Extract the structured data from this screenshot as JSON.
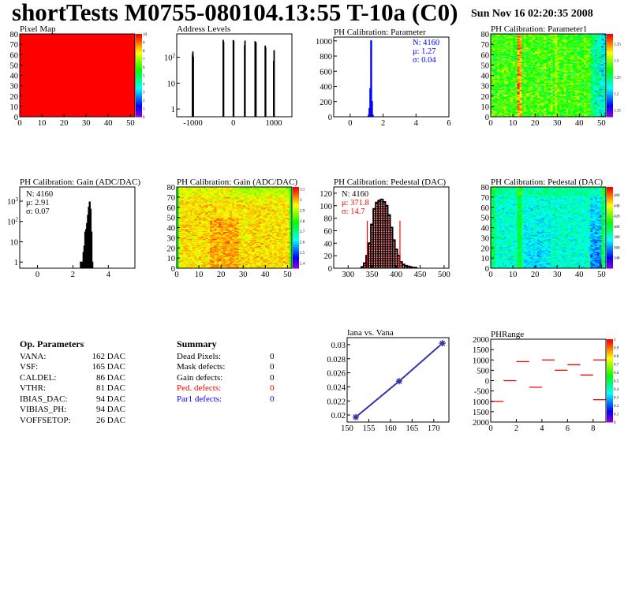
{
  "header": {
    "title": "shortTests M0755-080104.13:55 T-10a (C0)",
    "date": "Sun Nov 16 02:20:35 2008"
  },
  "colors": {
    "red": "#ff0000",
    "blue": "#0000ff",
    "graph": "#3333aa"
  },
  "op_parameters": {
    "title": "Op. Parameters",
    "rows": [
      {
        "name": "VANA:",
        "value": "162 DAC"
      },
      {
        "name": "VSF:",
        "value": "165 DAC"
      },
      {
        "name": "CALDEL:",
        "value": "86 DAC"
      },
      {
        "name": "VTHR:",
        "value": "81 DAC"
      },
      {
        "name": "IBIAS_DAC:",
        "value": "94 DAC"
      },
      {
        "name": "VIBIAS_PH:",
        "value": "94 DAC"
      },
      {
        "name": "VOFFSETOP:",
        "value": "26 DAC"
      }
    ]
  },
  "summary": {
    "title": "Summary",
    "rows": [
      {
        "name": "Dead Pixels:",
        "value": "0",
        "color": "#000000"
      },
      {
        "name": "Mask defects:",
        "value": "0",
        "color": "#000000"
      },
      {
        "name": "Gain defects:",
        "value": "0",
        "color": "#000000"
      },
      {
        "name": "Ped. defects:",
        "value": "0",
        "color": "#ff0000"
      },
      {
        "name": "Par1 defects:",
        "value": "0",
        "color": "#0000ff"
      }
    ]
  },
  "chart_data": [
    {
      "id": "pixelmap",
      "type": "heatmap",
      "title": "Pixel Map",
      "xlim": [
        0,
        52
      ],
      "ylim": [
        0,
        80
      ],
      "zlim": [
        0,
        10
      ],
      "uniform_value": 10,
      "xticks": [
        "0",
        "10",
        "20",
        "30",
        "40",
        "50"
      ],
      "yticks": [
        "0",
        "10",
        "20",
        "30",
        "40",
        "50",
        "60",
        "70",
        "80"
      ],
      "zticks": [
        "0",
        "1",
        "2",
        "3",
        "4",
        "5",
        "6",
        "7",
        "8",
        "9",
        "10"
      ]
    },
    {
      "id": "address",
      "type": "bar",
      "title": "Address Levels",
      "xlim": [
        -1400,
        1450
      ],
      "ylim": [
        0.5,
        800
      ],
      "ylog": true,
      "xticks": [
        "-1000",
        "0",
        "1000"
      ],
      "yticks": [
        "1",
        "10",
        "10^2"
      ],
      "x": [
        -1010,
        -1000,
        -990,
        -250,
        -240,
        0,
        10,
        280,
        290,
        540,
        550,
        560,
        790,
        800,
        1000,
        1010
      ],
      "values": [
        120,
        160,
        100,
        450,
        380,
        440,
        420,
        280,
        420,
        400,
        380,
        360,
        270,
        230,
        70,
        180
      ],
      "bin_width": 10
    },
    {
      "id": "param",
      "type": "bar",
      "title": "PH Calibration: Parameter",
      "xlim": [
        -1,
        6
      ],
      "ylim": [
        0,
        1050
      ],
      "xticks": [
        "0",
        "2",
        "4",
        "6"
      ],
      "yticks": [
        "0",
        "200",
        "400",
        "600",
        "800",
        "1000"
      ],
      "x": [
        1.125,
        1.175,
        1.225,
        1.275,
        1.325,
        1.375
      ],
      "values": [
        20,
        110,
        370,
        1000,
        200,
        20
      ],
      "bin_width": 0.05,
      "stats": [
        "N: 4160",
        "μ: 1.27",
        "σ: 0.04"
      ],
      "color": "#0000ff"
    },
    {
      "id": "param1",
      "type": "heatmap",
      "title": "PH Calibration: Parameter1",
      "xlim": [
        0,
        52
      ],
      "ylim": [
        0,
        80
      ],
      "zlim": [
        1.13,
        1.38
      ],
      "xticks": [
        "0",
        "10",
        "20",
        "30",
        "40",
        "50"
      ],
      "yticks": [
        "0",
        "10",
        "20",
        "30",
        "40",
        "50",
        "60",
        "70",
        "80"
      ],
      "zticks": [
        "1.15",
        "1.2",
        "1.25",
        "1.3",
        "1.35"
      ]
    },
    {
      "id": "gain",
      "type": "bar",
      "title": "PH Calibration: Gain (ADC/DAC)",
      "xlim": [
        -1,
        5.5
      ],
      "ylim": [
        0.5,
        5000
      ],
      "ylog": true,
      "xticks": [
        "0",
        "2",
        "4"
      ],
      "yticks": [
        "1",
        "10",
        "10^2",
        "10^3"
      ],
      "x": [
        2.45,
        2.5,
        2.55,
        2.6,
        2.65,
        2.7,
        2.75,
        2.8,
        2.85,
        2.9,
        2.95,
        3.0,
        3.05,
        3.1
      ],
      "values": [
        1,
        1,
        0,
        3,
        6,
        30,
        40,
        80,
        200,
        500,
        900,
        400,
        30,
        1
      ],
      "bin_width": 0.05,
      "stats": [
        "N: 4160",
        "μ: 2.91",
        "σ: 0.07"
      ]
    },
    {
      "id": "gainmap",
      "type": "heatmap",
      "title": "PH Calibration: Gain (ADC/DAC)",
      "xlim": [
        0,
        52
      ],
      "ylim": [
        0,
        80
      ],
      "zlim": [
        2.35,
        3.12
      ],
      "xticks": [
        "0",
        "10",
        "20",
        "30",
        "40",
        "50"
      ],
      "yticks": [
        "0",
        "10",
        "20",
        "30",
        "40",
        "50",
        "60",
        "70",
        "80"
      ],
      "zticks": [
        "2.4",
        "2.5",
        "2.6",
        "2.7",
        "2.8",
        "2.9",
        "3",
        "3.1"
      ]
    },
    {
      "id": "pedestal",
      "type": "bar",
      "title": "PH Calibration: Pedestal (DAC)",
      "xlim": [
        270,
        510
      ],
      "ylim": [
        0,
        130
      ],
      "xticks": [
        "300",
        "350",
        "400",
        "450",
        "500"
      ],
      "yticks": [
        "0",
        "20",
        "40",
        "60",
        "80",
        "100",
        "120"
      ],
      "x": [
        330,
        335,
        340,
        345,
        350,
        355,
        360,
        365,
        370,
        375,
        380,
        385,
        390,
        395,
        400,
        405,
        410,
        415,
        420,
        425,
        430,
        435,
        440
      ],
      "values": [
        2,
        8,
        20,
        40,
        70,
        95,
        105,
        108,
        110,
        106,
        100,
        85,
        65,
        45,
        30,
        20,
        10,
        6,
        4,
        3,
        2,
        1,
        1
      ],
      "bin_width": 5,
      "cuts": [
        340,
        408
      ],
      "cut_height": 76,
      "stats": [
        "N: 4160",
        "μ: 371.8",
        "σ: 14.7"
      ]
    },
    {
      "id": "pedmap",
      "type": "heatmap",
      "title": "PH Calibration: Pedestal (DAC)",
      "xlim": [
        0,
        52
      ],
      "ylim": [
        0,
        80
      ],
      "zlim": [
        320,
        475
      ],
      "xticks": [
        "0",
        "10",
        "20",
        "30",
        "40",
        "50"
      ],
      "yticks": [
        "0",
        "10",
        "20",
        "30",
        "40",
        "50",
        "60",
        "70",
        "80"
      ],
      "zticks": [
        "340",
        "360",
        "380",
        "400",
        "420",
        "440",
        "460"
      ]
    },
    {
      "id": "iana",
      "type": "line",
      "title": "Iana vs. Vana",
      "xlim": [
        150,
        173.5
      ],
      "ylim": [
        0.019,
        0.031
      ],
      "xticks": [
        "150",
        "155",
        "160",
        "165",
        "170"
      ],
      "yticks": [
        "0.02",
        "0.022",
        "0.024",
        "0.026",
        "0.028",
        "0.03"
      ],
      "x": [
        152,
        162,
        172
      ],
      "y": [
        0.0197,
        0.0248,
        0.0302
      ]
    },
    {
      "id": "phrange",
      "type": "heatmap",
      "title": "PHRange",
      "xlim": [
        0,
        9
      ],
      "ylim": [
        -2000,
        2000
      ],
      "zlim": [
        0,
        1
      ],
      "xticks": [
        "0",
        "2",
        "4",
        "6",
        "8"
      ],
      "yticks": [
        "2000",
        "1500",
        "1000",
        "500",
        "0",
        "-500",
        "1000",
        "1500",
        "2000"
      ],
      "zticks": [
        "0",
        "0.1",
        "0.2",
        "0.3",
        "0.4",
        "0.5",
        "0.6",
        "0.7",
        "0.8",
        "0.9",
        "1"
      ],
      "cells": [
        [
          0,
          -1000
        ],
        [
          1,
          0
        ],
        [
          2,
          920
        ],
        [
          3,
          -320
        ],
        [
          4,
          1000
        ],
        [
          5,
          500
        ],
        [
          6,
          770
        ],
        [
          7,
          270
        ],
        [
          8,
          1000
        ],
        [
          8,
          -920
        ]
      ]
    }
  ]
}
